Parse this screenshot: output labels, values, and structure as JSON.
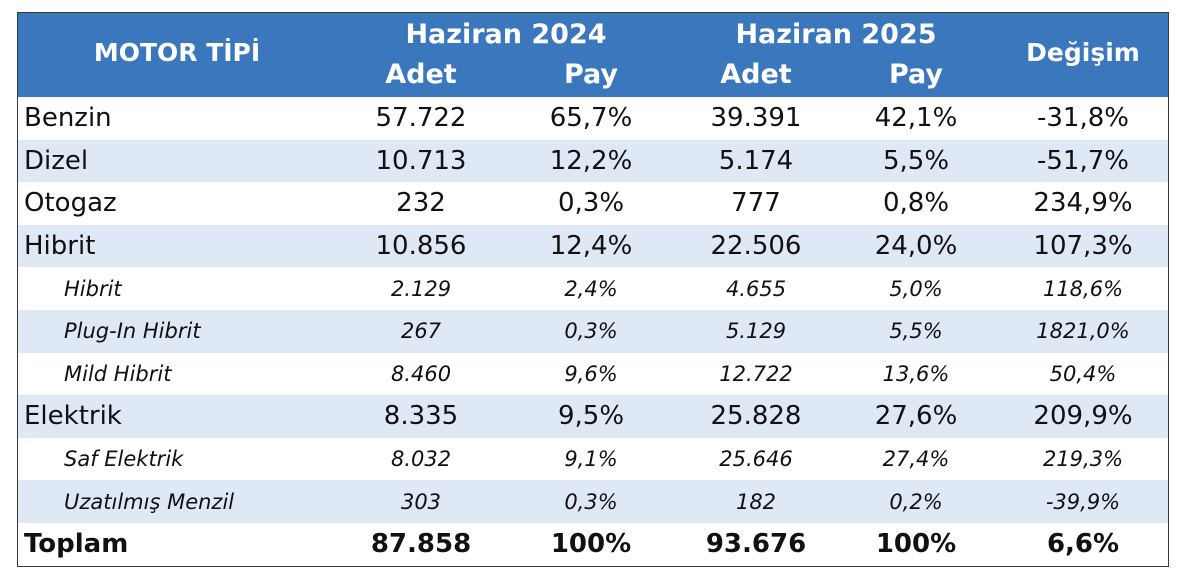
{
  "header": {
    "motor_tipi": "MOTOR TİPİ",
    "period1": "Haziran 2024",
    "period2": "Haziran 2025",
    "adet": "Adet",
    "pay": "Pay",
    "degisim": "Değişim"
  },
  "rows": [
    {
      "name": "Benzin",
      "adet2024": "57.722",
      "pay2024": "65,7%",
      "adet2025": "39.391",
      "pay2025": "42,1%",
      "degisim": "-31,8%"
    },
    {
      "name": "Dizel",
      "adet2024": "10.713",
      "pay2024": "12,2%",
      "adet2025": "5.174",
      "pay2025": "5,5%",
      "degisim": "-51,7%"
    },
    {
      "name": "Otogaz",
      "adet2024": "232",
      "pay2024": "0,3%",
      "adet2025": "777",
      "pay2025": "0,8%",
      "degisim": "234,9%"
    },
    {
      "name": "Hibrit",
      "adet2024": "10.856",
      "pay2024": "12,4%",
      "adet2025": "22.506",
      "pay2025": "24,0%",
      "degisim": "107,3%"
    },
    {
      "name": "Hibrit",
      "adet2024": "2.129",
      "pay2024": "2,4%",
      "adet2025": "4.655",
      "pay2025": "5,0%",
      "degisim": "118,6%"
    },
    {
      "name": "Plug-In Hibrit",
      "adet2024": "267",
      "pay2024": "0,3%",
      "adet2025": "5.129",
      "pay2025": "5,5%",
      "degisim": "1821,0%"
    },
    {
      "name": "Mild Hibrit",
      "adet2024": "8.460",
      "pay2024": "9,6%",
      "adet2025": "12.722",
      "pay2025": "13,6%",
      "degisim": "50,4%"
    },
    {
      "name": "Elektrik",
      "adet2024": "8.335",
      "pay2024": "9,5%",
      "adet2025": "25.828",
      "pay2025": "27,6%",
      "degisim": "209,9%"
    },
    {
      "name": "Saf Elektrik",
      "adet2024": "8.032",
      "pay2024": "9,1%",
      "adet2025": "25.646",
      "pay2025": "27,4%",
      "degisim": "219,3%"
    },
    {
      "name": "Uzatılmış Menzil",
      "adet2024": "303",
      "pay2024": "0,3%",
      "adet2025": "182",
      "pay2025": "0,2%",
      "degisim": "-39,9%"
    },
    {
      "name": "Toplam",
      "adet2024": "87.858",
      "pay2024": "100%",
      "adet2025": "93.676",
      "pay2025": "100%",
      "degisim": "6,6%"
    }
  ]
}
